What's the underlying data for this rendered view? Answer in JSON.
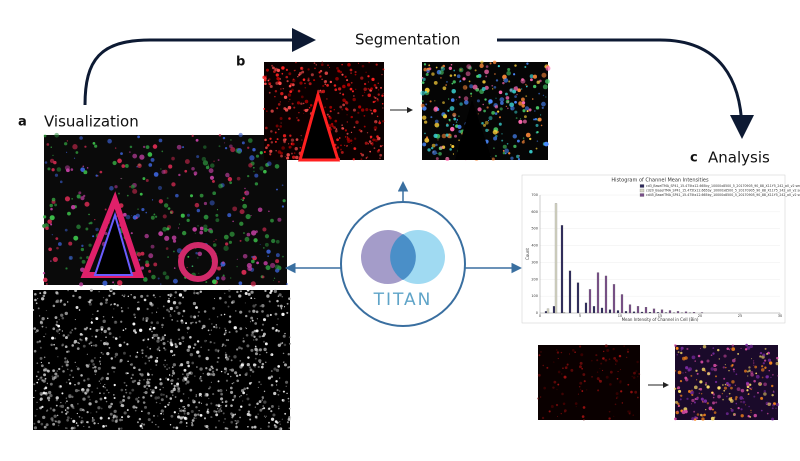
{
  "labels": {
    "a": "a",
    "b": "b",
    "c": "c"
  },
  "sections": {
    "visualization": "Visualization",
    "segmentation": "Segmentation",
    "analysis": "Analysis"
  },
  "logo": "TITAN",
  "chart_data": {
    "type": "bar",
    "title": "Histogram of Channel Mean Intensities",
    "x_label": "Mean Intensity of Channel in Cell (Bin)",
    "y_label": "Count",
    "x": [
      1,
      2,
      3,
      4,
      5,
      6,
      7,
      8,
      9,
      10,
      11,
      12,
      13,
      14,
      15,
      16,
      17,
      18,
      19,
      20
    ],
    "series": [
      {
        "name": "cd3_BaselTMA_SP41_15.475tx12.665by_10000x8500_5_20170905_90_88_X11Y5_242_a0_v2 series",
        "color": "#2d2a5c",
        "values": [
          10,
          40,
          520,
          250,
          180,
          60,
          40,
          30,
          20,
          15,
          10,
          8,
          6,
          5,
          4,
          3,
          2,
          1,
          1,
          0
        ]
      },
      {
        "name": "cd20_BaselTMA_SP41_15.475tx12.665by_10000x8500_5_20170905_90_88_X11Y5_242_a0_v2 series",
        "color": "#d8d8c6",
        "values": [
          25,
          650,
          5,
          0,
          0,
          0,
          0,
          0,
          0,
          0,
          0,
          0,
          0,
          0,
          0,
          0,
          0,
          0,
          0,
          0
        ]
      },
      {
        "name": "cd45_BaselTMA_SP41_15.475tx12.665by_10000x8500_5_20170905_90_88_X11Y5_242_a0_v2 series",
        "color": "#7a4f8a",
        "values": [
          0,
          0,
          0,
          0,
          0,
          140,
          240,
          220,
          170,
          110,
          50,
          40,
          35,
          25,
          20,
          15,
          10,
          8,
          5,
          3
        ]
      }
    ],
    "xlim": [
      0,
      30
    ],
    "xticks": [
      0,
      5,
      10,
      15,
      20,
      25,
      30
    ],
    "ylim": [
      0,
      700
    ],
    "yticks": [
      0,
      100,
      200,
      300,
      400,
      500,
      600,
      700
    ]
  }
}
